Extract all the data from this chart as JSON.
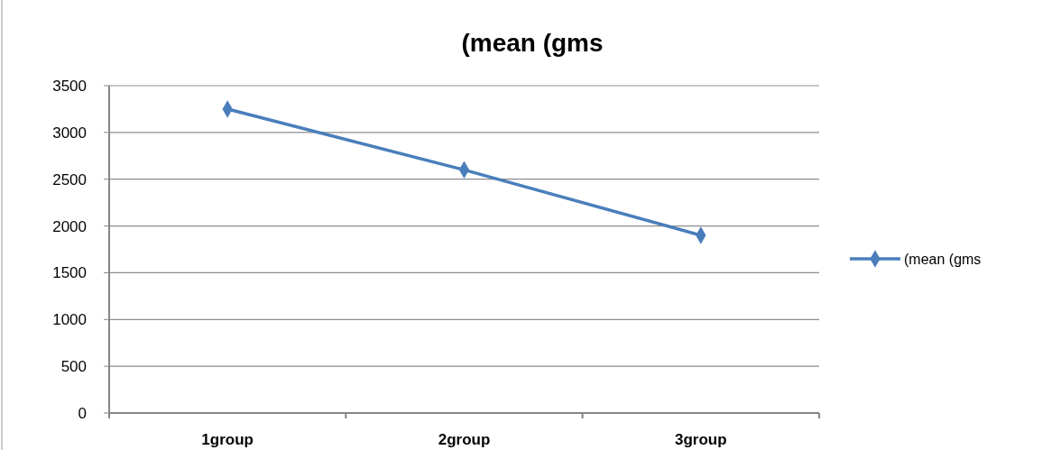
{
  "chart_data": {
    "type": "line",
    "title": "(mean (gms",
    "categories": [
      "1group",
      "2group",
      "3group"
    ],
    "series": [
      {
        "name": "(mean (gms",
        "color": "#4a7ebb",
        "values": [
          3250,
          2600,
          1900
        ]
      }
    ],
    "ylim": [
      0,
      3500
    ],
    "yticks": [
      0,
      500,
      1000,
      1500,
      2000,
      2500,
      3000,
      3500
    ],
    "grid": "y",
    "legend": "right",
    "marker": "diamond"
  }
}
